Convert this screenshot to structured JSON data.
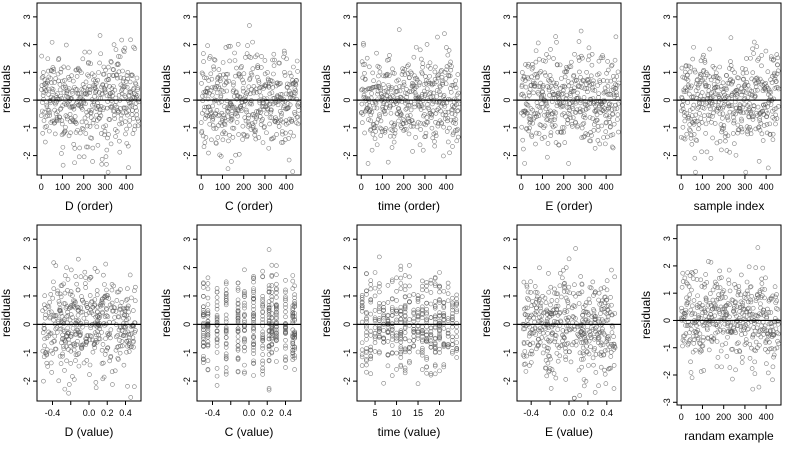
{
  "chart_data": [
    {
      "type": "scatter",
      "xlabel": "D (order)",
      "ylabel": "residuals",
      "xlim": [
        -20,
        470
      ],
      "ylim": [
        -2.7,
        3.5
      ],
      "xticks": [
        0,
        100,
        200,
        300,
        400
      ],
      "xtick_labels": [
        "0",
        "100",
        "200",
        "300",
        "400"
      ],
      "yticks": [
        -2,
        -1,
        0,
        1,
        2,
        3
      ],
      "ytick_labels": [
        "-2",
        "-1",
        "0",
        "1",
        "2",
        "3"
      ],
      "hline": 0,
      "grid": false,
      "n_points": 460,
      "x_dist": "index",
      "x_values": [],
      "point_color": "#555555"
    },
    {
      "type": "scatter",
      "xlabel": "C (order)",
      "ylabel": "residuals",
      "xlim": [
        -20,
        470
      ],
      "ylim": [
        -2.7,
        3.5
      ],
      "xticks": [
        0,
        100,
        200,
        300,
        400
      ],
      "xtick_labels": [
        "0",
        "100",
        "200",
        "300",
        "400"
      ],
      "yticks": [
        -2,
        -1,
        0,
        1,
        2,
        3
      ],
      "ytick_labels": [
        "-2",
        "-1",
        "0",
        "1",
        "2",
        "3"
      ],
      "hline": 0,
      "grid": false,
      "n_points": 460,
      "x_dist": "index",
      "x_values": [],
      "point_color": "#555555"
    },
    {
      "type": "scatter",
      "xlabel": "time (order)",
      "ylabel": "residuals",
      "xlim": [
        -20,
        470
      ],
      "ylim": [
        -2.7,
        3.5
      ],
      "xticks": [
        0,
        100,
        200,
        300,
        400
      ],
      "xtick_labels": [
        "0",
        "100",
        "200",
        "300",
        "400"
      ],
      "yticks": [
        -2,
        -1,
        0,
        1,
        2,
        3
      ],
      "ytick_labels": [
        "-2",
        "-1",
        "0",
        "1",
        "2",
        "3"
      ],
      "hline": 0,
      "grid": false,
      "n_points": 460,
      "x_dist": "index",
      "x_values": [],
      "point_color": "#555555"
    },
    {
      "type": "scatter",
      "xlabel": "E (order)",
      "ylabel": "residuals",
      "xlim": [
        -20,
        470
      ],
      "ylim": [
        -2.7,
        3.5
      ],
      "xticks": [
        0,
        100,
        200,
        300,
        400
      ],
      "xtick_labels": [
        "0",
        "100",
        "200",
        "300",
        "400"
      ],
      "yticks": [
        -2,
        -1,
        0,
        1,
        2,
        3
      ],
      "ytick_labels": [
        "-2",
        "-1",
        "0",
        "1",
        "2",
        "3"
      ],
      "hline": 0,
      "grid": false,
      "n_points": 460,
      "x_dist": "index",
      "x_values": [],
      "point_color": "#555555"
    },
    {
      "type": "scatter",
      "xlabel": "sample index",
      "ylabel": "residuals",
      "xlim": [
        -20,
        470
      ],
      "ylim": [
        -2.7,
        3.5
      ],
      "xticks": [
        0,
        100,
        200,
        300,
        400
      ],
      "xtick_labels": [
        "0",
        "100",
        "200",
        "300",
        "400"
      ],
      "yticks": [
        -2,
        -1,
        0,
        1,
        2,
        3
      ],
      "ytick_labels": [
        "-2",
        "-1",
        "0",
        "1",
        "2",
        "3"
      ],
      "hline": 0,
      "grid": false,
      "n_points": 460,
      "x_dist": "index",
      "x_values": [],
      "point_color": "#555555"
    },
    {
      "type": "scatter",
      "xlabel": "D (value)",
      "ylabel": "residuals",
      "xlim": [
        -0.57,
        0.57
      ],
      "ylim": [
        -2.7,
        3.5
      ],
      "xticks": [
        -0.4,
        -0.2,
        0.0,
        0.2,
        0.4
      ],
      "xtick_labels": [
        "-0.4",
        "",
        "0.0",
        "0.2",
        "0.4"
      ],
      "yticks": [
        -2,
        -1,
        0,
        1,
        2,
        3
      ],
      "ytick_labels": [
        "-2",
        "-1",
        "0",
        "1",
        "2",
        "3"
      ],
      "hline": 0,
      "grid": false,
      "n_points": 460,
      "x_dist": "continuous",
      "x_values": [],
      "point_color": "#555555"
    },
    {
      "type": "scatter",
      "xlabel": "C (value)",
      "ylabel": "residuals",
      "xlim": [
        -0.57,
        0.57
      ],
      "ylim": [
        -2.7,
        3.5
      ],
      "xticks": [
        -0.4,
        -0.2,
        0.0,
        0.2,
        0.4
      ],
      "xtick_labels": [
        "-0.4",
        "",
        "0.0",
        "0.2",
        "0.4"
      ],
      "yticks": [
        -2,
        -1,
        0,
        1,
        2,
        3
      ],
      "ytick_labels": [
        "-2",
        "-1",
        "0",
        "1",
        "2",
        "3"
      ],
      "hline": 0,
      "grid": false,
      "n_points": 460,
      "x_dist": "discrete",
      "x_values": [
        -0.5,
        -0.45,
        -0.35,
        -0.25,
        -0.12,
        -0.05,
        0.05,
        0.15,
        0.22,
        0.25,
        0.3,
        0.4,
        0.48,
        0.5
      ],
      "point_color": "#555555"
    },
    {
      "type": "scatter",
      "xlabel": "time (value)",
      "ylabel": "residuals",
      "xlim": [
        0.8,
        25
      ],
      "ylim": [
        -2.7,
        3.5
      ],
      "xticks": [
        5,
        10,
        15,
        20
      ],
      "xtick_labels": [
        "5",
        "10",
        "15",
        "20"
      ],
      "yticks": [
        -2,
        -1,
        0,
        1,
        2,
        3
      ],
      "ytick_labels": [
        "-2",
        "-1",
        "0",
        "1",
        "2",
        "3"
      ],
      "hline": 0,
      "grid": false,
      "n_points": 460,
      "x_dist": "discrete",
      "x_values": [
        2,
        3,
        4,
        5,
        6,
        7,
        8,
        9,
        10,
        11,
        12,
        13,
        14,
        15,
        16,
        17,
        18,
        19,
        20,
        21,
        22,
        23,
        24
      ],
      "point_color": "#555555"
    },
    {
      "type": "scatter",
      "xlabel": "E (value)",
      "ylabel": "residuals",
      "xlim": [
        -0.55,
        0.55
      ],
      "ylim": [
        -2.7,
        3.5
      ],
      "xticks": [
        -0.4,
        -0.2,
        0.0,
        0.2,
        0.4
      ],
      "xtick_labels": [
        "-0.4",
        "",
        "0.0",
        "0.2",
        "0.4"
      ],
      "yticks": [
        -2,
        -1,
        0,
        1,
        2,
        3
      ],
      "ytick_labels": [
        "-2",
        "-1",
        "0",
        "1",
        "2",
        "3"
      ],
      "hline": 0,
      "grid": false,
      "n_points": 460,
      "x_dist": "continuous",
      "x_values": [],
      "point_color": "#555555"
    },
    {
      "type": "scatter",
      "xlabel": "randam example",
      "ylabel": "residuals",
      "xlim": [
        -20,
        470
      ],
      "ylim": [
        -3.1,
        3.5
      ],
      "xticks": [
        0,
        100,
        200,
        300,
        400
      ],
      "xtick_labels": [
        "0",
        "100",
        "200",
        "300",
        "400"
      ],
      "yticks": [
        -3,
        -2,
        -1,
        0,
        1,
        2,
        3
      ],
      "ytick_labels": [
        "-3",
        "-2",
        "-1",
        "0",
        "1",
        "2",
        "3"
      ],
      "hline": 0,
      "grid": false,
      "n_points": 460,
      "x_dist": "index",
      "x_values": [],
      "point_color": "#555555"
    }
  ]
}
